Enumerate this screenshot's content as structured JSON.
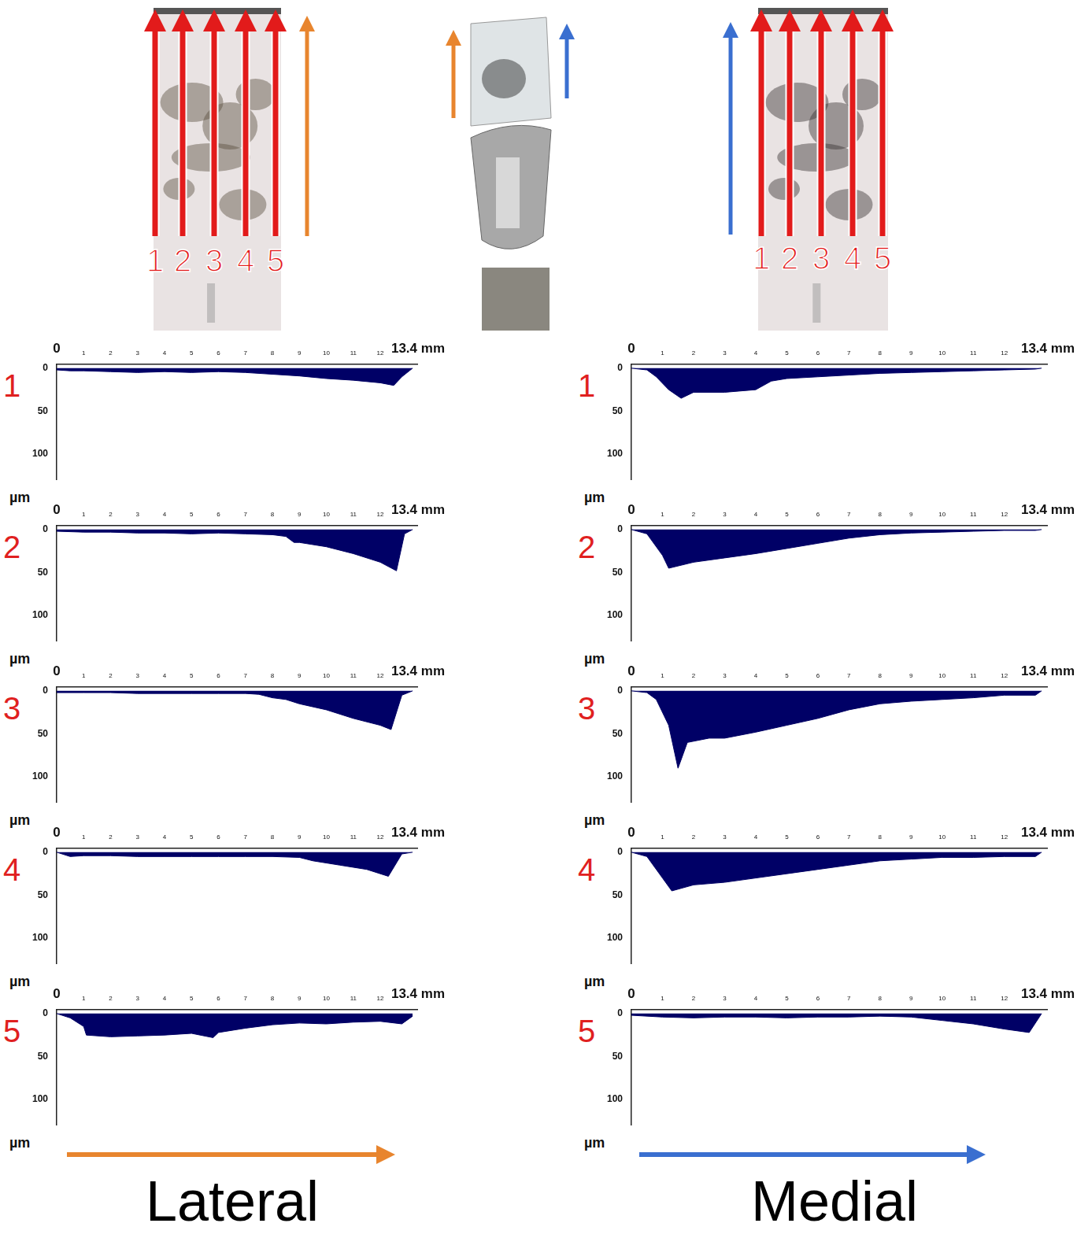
{
  "figure": {
    "photo_labels": [
      "1",
      "2",
      "3",
      "4",
      "5"
    ],
    "columns": [
      {
        "title": "Lateral",
        "color": "#e8852e"
      },
      {
        "title": "Medial",
        "color": "#3a6fd0"
      }
    ]
  },
  "chart_data": [
    {
      "type": "area",
      "title": "1",
      "y_label": "µm",
      "color": "#000066",
      "x": [
        0,
        0.5,
        1,
        2,
        3,
        4,
        5,
        6,
        7,
        8,
        9,
        10,
        11,
        12,
        12.5,
        12.8,
        13.2
      ],
      "values": [
        2,
        3,
        3,
        4,
        5,
        4,
        5,
        4,
        5,
        7,
        9,
        12,
        14,
        17,
        20,
        10,
        0
      ],
      "xlim": [
        0,
        13.4
      ],
      "xticks": [
        0,
        1,
        2,
        3,
        4,
        5,
        6,
        7,
        8,
        9,
        10,
        11,
        12,
        {
          "value": 13.4,
          "label": "13.4 mm"
        }
      ],
      "ylim": [
        -5,
        130
      ],
      "yticks": [
        0,
        50,
        100
      ],
      "grid": false
    },
    {
      "type": "area",
      "title": "2",
      "y_label": "µm",
      "color": "#000066",
      "x": [
        0,
        1,
        2,
        3,
        4,
        5,
        6,
        7,
        8,
        8.5,
        8.8,
        9,
        10,
        11,
        12,
        12.6,
        12.9,
        13.2
      ],
      "values": [
        2,
        3,
        3,
        4,
        4,
        5,
        4,
        5,
        6,
        8,
        15,
        15,
        20,
        28,
        38,
        48,
        5,
        0
      ],
      "xlim": [
        0,
        13.4
      ],
      "xticks": [
        0,
        1,
        2,
        3,
        4,
        5,
        6,
        7,
        8,
        9,
        10,
        11,
        12,
        {
          "value": 13.4,
          "label": "13.4 mm"
        }
      ],
      "ylim": [
        -5,
        130
      ],
      "yticks": [
        0,
        50,
        100
      ],
      "grid": false
    },
    {
      "type": "area",
      "title": "3",
      "y_label": "µm",
      "color": "#000066",
      "x": [
        0,
        1,
        2,
        3,
        4,
        5,
        6,
        7,
        7.5,
        8,
        8.5,
        9,
        10,
        11,
        12,
        12.4,
        12.8,
        13.2
      ],
      "values": [
        2,
        2,
        2,
        3,
        3,
        3,
        3,
        3,
        4,
        8,
        10,
        15,
        22,
        32,
        40,
        45,
        5,
        0
      ],
      "xlim": [
        0,
        13.4
      ],
      "xticks": [
        0,
        1,
        2,
        3,
        4,
        5,
        6,
        7,
        8,
        9,
        10,
        11,
        12,
        {
          "value": 13.4,
          "label": "13.4 mm"
        }
      ],
      "ylim": [
        -5,
        130
      ],
      "yticks": [
        0,
        50,
        100
      ],
      "grid": false
    },
    {
      "type": "area",
      "title": "4",
      "y_label": "µm",
      "color": "#000066",
      "x": [
        0,
        0.5,
        1,
        2,
        3,
        4,
        5,
        6,
        7,
        8,
        9,
        9.5,
        10.5,
        11.5,
        12.3,
        12.8,
        13.2
      ],
      "values": [
        0,
        5,
        4,
        4,
        5,
        5,
        5,
        5,
        5,
        5,
        6,
        10,
        15,
        20,
        28,
        2,
        0
      ],
      "xlim": [
        0,
        13.4
      ],
      "xticks": [
        0,
        1,
        2,
        3,
        4,
        5,
        6,
        7,
        8,
        9,
        10,
        11,
        12,
        {
          "value": 13.4,
          "label": "13.4 mm"
        }
      ],
      "ylim": [
        -5,
        130
      ],
      "yticks": [
        0,
        50,
        100
      ],
      "grid": false
    },
    {
      "type": "area",
      "title": "5",
      "y_label": "µm",
      "color": "#000066",
      "x": [
        0,
        0.5,
        1,
        1.1,
        2,
        3,
        4,
        5,
        5.8,
        6,
        7,
        8,
        9,
        10,
        11,
        12,
        12.8,
        13.2
      ],
      "values": [
        0,
        5,
        15,
        25,
        27,
        26,
        25,
        23,
        28,
        22,
        17,
        13,
        11,
        12,
        10,
        9,
        12,
        3
      ],
      "xlim": [
        0,
        13.4
      ],
      "xticks": [
        0,
        1,
        2,
        3,
        4,
        5,
        6,
        7,
        8,
        9,
        10,
        11,
        12,
        {
          "value": 13.4,
          "label": "13.4 mm"
        }
      ],
      "ylim": [
        -5,
        130
      ],
      "yticks": [
        0,
        50,
        100
      ],
      "grid": false
    },
    {
      "type": "area",
      "title": "1",
      "y_label": "µm",
      "color": "#000066",
      "x": [
        0,
        0.5,
        0.8,
        1.2,
        1.6,
        2,
        3,
        4,
        4.5,
        5,
        6,
        7,
        8,
        9,
        10,
        11,
        12,
        13,
        13.2
      ],
      "values": [
        0,
        2,
        10,
        25,
        35,
        28,
        28,
        25,
        15,
        12,
        10,
        8,
        6,
        5,
        4,
        3,
        2,
        1,
        0
      ],
      "xlim": [
        0,
        13.4
      ],
      "xticks": [
        0,
        1,
        2,
        3,
        4,
        5,
        6,
        7,
        8,
        9,
        10,
        11,
        12,
        {
          "value": 13.4,
          "label": "13.4 mm"
        }
      ],
      "ylim": [
        -5,
        130
      ],
      "yticks": [
        0,
        50,
        100
      ],
      "grid": false
    },
    {
      "type": "area",
      "title": "2",
      "y_label": "µm",
      "color": "#000066",
      "x": [
        0,
        0.5,
        1,
        1.2,
        2,
        3,
        4,
        5,
        6,
        7,
        8,
        9,
        10,
        11,
        12,
        13,
        13.2
      ],
      "values": [
        0,
        5,
        30,
        45,
        38,
        33,
        28,
        22,
        16,
        10,
        6,
        4,
        3,
        2,
        1,
        1,
        0
      ],
      "xlim": [
        0,
        13.4
      ],
      "xticks": [
        0,
        1,
        2,
        3,
        4,
        5,
        6,
        7,
        8,
        9,
        10,
        11,
        12,
        {
          "value": 13.4,
          "label": "13.4 mm"
        }
      ],
      "ylim": [
        -5,
        130
      ],
      "yticks": [
        0,
        50,
        100
      ],
      "grid": false
    },
    {
      "type": "area",
      "title": "3",
      "y_label": "µm",
      "color": "#000066",
      "x": [
        0,
        0.5,
        0.8,
        1.2,
        1.5,
        1.8,
        2.5,
        3,
        4,
        5,
        6,
        7,
        8,
        9,
        10,
        11,
        12,
        13,
        13.2
      ],
      "values": [
        0,
        2,
        10,
        40,
        90,
        60,
        55,
        55,
        48,
        40,
        32,
        22,
        15,
        12,
        10,
        8,
        5,
        5,
        0
      ],
      "xlim": [
        0,
        13.4
      ],
      "xticks": [
        0,
        1,
        2,
        3,
        4,
        5,
        6,
        7,
        8,
        9,
        10,
        11,
        12,
        {
          "value": 13.4,
          "label": "13.4 mm"
        }
      ],
      "ylim": [
        -5,
        130
      ],
      "yticks": [
        0,
        50,
        100
      ],
      "grid": false
    },
    {
      "type": "area",
      "title": "4",
      "y_label": "µm",
      "color": "#000066",
      "x": [
        0,
        0.5,
        1,
        1.3,
        2,
        3,
        4,
        5,
        6,
        7,
        8,
        9,
        10,
        11,
        12,
        13,
        13.2
      ],
      "values": [
        0,
        5,
        30,
        45,
        38,
        35,
        30,
        25,
        20,
        15,
        10,
        8,
        6,
        6,
        5,
        5,
        0
      ],
      "xlim": [
        0,
        13.4
      ],
      "xticks": [
        0,
        1,
        2,
        3,
        4,
        5,
        6,
        7,
        8,
        9,
        10,
        11,
        12,
        {
          "value": 13.4,
          "label": "13.4 mm"
        }
      ],
      "ylim": [
        -5,
        130
      ],
      "yticks": [
        0,
        50,
        100
      ],
      "grid": false
    },
    {
      "type": "area",
      "title": "5",
      "y_label": "µm",
      "color": "#000066",
      "x": [
        0,
        1,
        2,
        3,
        4,
        5,
        6,
        7,
        8,
        9,
        10,
        11,
        12,
        12.8,
        13.2
      ],
      "values": [
        2,
        4,
        5,
        4,
        4,
        5,
        4,
        4,
        3,
        4,
        8,
        12,
        18,
        22,
        0
      ],
      "xlim": [
        0,
        13.4
      ],
      "xticks": [
        0,
        1,
        2,
        3,
        4,
        5,
        6,
        7,
        8,
        9,
        10,
        11,
        12,
        {
          "value": 13.4,
          "label": "13.4 mm"
        }
      ],
      "ylim": [
        -5,
        130
      ],
      "yticks": [
        0,
        50,
        100
      ],
      "grid": false
    }
  ]
}
